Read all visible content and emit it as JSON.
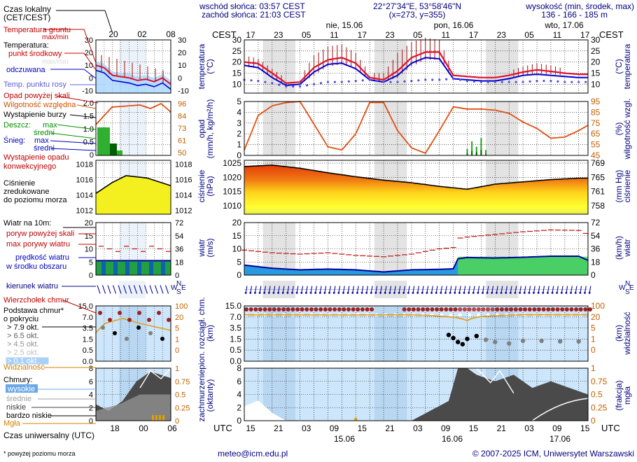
{
  "header": {
    "sunrise": "wschód słońca: 03:57 CEST",
    "sunset": "zachód słońca: 21:03 CEST",
    "coords": "22°27'34\"E, 53°58'46\"N",
    "grid": "(x=273,  y=355)",
    "elev_label": "wysokość (min, środek, max)",
    "elev_values": "136 - 166 - 185 m",
    "tz_label": "CEST",
    "utc_label": "UTC",
    "day_labels": [
      "nie, 15.06",
      "pon, 16.06",
      "wto, 17.06"
    ],
    "date_bottom": [
      "15.06",
      "16.06",
      "17.06"
    ]
  },
  "footer": {
    "email": "meteo@icm.edu.pl",
    "copyright": "© 2007-2025 ICM, Uniwersytet Warszawski",
    "note": "* powyżej poziomu morza",
    "left_axis_title": "Czas uniwersalny (UTC)"
  },
  "legend": {
    "local_time": [
      "Czas lokalny",
      "(CET/CEST)"
    ],
    "temp": {
      "ground": [
        "Temperatura gruntu",
        "max/min"
      ],
      "title": "Temperatura:",
      "mid": "punkt środkowy",
      "max_min": "max/min",
      "feel": "odczuwana",
      "dew": "Temp. punktu rosy"
    },
    "precip": {
      "above": "Opad powyżej skali",
      "humidity": "Wilgotność względna",
      "storm": "Wystąpienie burzy",
      "rain": "Deszcz:",
      "max": "max",
      "mean": "średni",
      "snow": "Śnieg:",
      "conv": [
        "Wystąpienie opadu",
        "konwekcyjnego"
      ]
    },
    "pressure": [
      "Ciśnienie",
      "zredukowane",
      "do poziomu morza"
    ],
    "wind": {
      "title": "Wiatr na 10m:",
      "above": "poryw powyżej skali",
      "gust": "max porywy wiatru",
      "speed": [
        "prędkość wiatru",
        "w środku obszaru"
      ]
    },
    "wdir": "kierunek wiatru",
    "cloud": {
      "top": "Wierzchołek chmur",
      "base": [
        "Podstawa chmur*",
        "o pokryciu"
      ],
      "okt": [
        "> 7.9 okt.",
        "> 6.5 okt.",
        "> 4.5 okt.",
        "> 2.5 okt.",
        "> 0.1 okt."
      ],
      "vis": "Widzialność"
    },
    "clouds": {
      "title": "Chmury:",
      "high": "wysokie",
      "mid": "średnie",
      "low": "niskie",
      "vlow": "bardzo niskie",
      "fog": "Mgła"
    },
    "compass": [
      "N",
      "W",
      "S",
      "E"
    ]
  },
  "axis_titles": {
    "temp_l": [
      "temperatura",
      "(°C)"
    ],
    "temp_r": [
      "(°C)",
      "temperatura"
    ],
    "precip_l": [
      "opad",
      "(mm/h, kg/m²/h)"
    ],
    "precip_r": [
      "(%)",
      "wilgotność wzgl."
    ],
    "press_l": [
      "ciśnienie",
      "(hPa)"
    ],
    "press_r": [
      "(mm Hg)",
      "ciśnienie"
    ],
    "wind_l": [
      "wiatr",
      "(m/s)"
    ],
    "wind_r": [
      "(km/h)",
      "wiatr"
    ],
    "cloud_l": [
      "pion. rozciągł. chm.",
      "(km)"
    ],
    "cloud_r": [
      "(km)",
      "widzialność"
    ],
    "cov_l": [
      "zachmurzenie",
      "(oktanty)"
    ],
    "cov_r": [
      "(frakcja)",
      "mgła"
    ]
  },
  "chart_data": {
    "type": "meteogram",
    "time_axis": {
      "start_utc": "2025-06-14 15:00",
      "step_hours": 1,
      "hours": 75,
      "cest_ticks": [
        "17",
        "23",
        "05",
        "11",
        "17",
        "23",
        "05",
        "11",
        "17",
        "23",
        "05",
        "11",
        "17"
      ],
      "utc_ticks": [
        "15",
        "21",
        "03",
        "09",
        "15",
        "21",
        "03",
        "09",
        "15",
        "21",
        "03",
        "09",
        "15"
      ],
      "night_bands_utc_hours": [
        [
          4,
          11
        ],
        [
          28,
          35
        ],
        [
          52,
          59
        ]
      ]
    },
    "temperature": {
      "ylim": [
        6,
        30
      ],
      "ticks": [
        10,
        15,
        20,
        25,
        30
      ],
      "key_hours": [
        0,
        3,
        6,
        9,
        12,
        15,
        18,
        21,
        24,
        27,
        30,
        33,
        36,
        39,
        42,
        45,
        48,
        51,
        54,
        57,
        60,
        63,
        66,
        69,
        72,
        74
      ],
      "mid": [
        20,
        19.3,
        15,
        10.5,
        11,
        17.5,
        21,
        22,
        19.5,
        13,
        12,
        16,
        22,
        24.5,
        24.5,
        14,
        13.5,
        13,
        13,
        14,
        15.5,
        16.5,
        15.8,
        15,
        14.5,
        14.5
      ],
      "feel": [
        18.5,
        17.5,
        13,
        9.5,
        10,
        15.5,
        19,
        19.5,
        17,
        12,
        11,
        14,
        19.5,
        22,
        21.5,
        12.5,
        12,
        11.5,
        11.5,
        12.5,
        14,
        14.5,
        14,
        13.5,
        13,
        13
      ],
      "dew": [
        12,
        11.5,
        10.5,
        9,
        9,
        10,
        11,
        11,
        11.5,
        12,
        11,
        11,
        11.5,
        12,
        12,
        12.5,
        11.5,
        11,
        11,
        11,
        11,
        11.5,
        11.5,
        11,
        11,
        11
      ],
      "max": [
        23,
        21.5,
        17,
        12.5,
        13,
        23,
        27,
        28,
        24,
        15,
        15,
        24,
        29,
        31,
        30,
        16,
        15,
        14.5,
        15,
        16,
        18,
        19.5,
        18.5,
        17,
        16,
        16
      ],
      "min": [
        18,
        17,
        13,
        9.5,
        10,
        14,
        18,
        19,
        17,
        12,
        11,
        13,
        18,
        21,
        21,
        13,
        12.5,
        12,
        12,
        13,
        14,
        15,
        14.5,
        14,
        13.5,
        13.5
      ]
    },
    "precipitation": {
      "precip_ylim": [
        0,
        5
      ],
      "precip_ticks": [
        0,
        1,
        2,
        3,
        4,
        5
      ],
      "rh_ticks": [
        45,
        55,
        65,
        75,
        85,
        95
      ],
      "rh_key_hours": [
        0,
        3,
        6,
        9,
        12,
        15,
        18,
        21,
        24,
        27,
        30,
        33,
        36,
        39,
        42,
        45,
        48,
        51,
        54,
        57,
        60,
        63,
        66,
        69,
        72,
        74
      ],
      "rh": [
        50,
        82,
        91,
        94,
        95,
        74,
        53,
        50,
        65,
        94,
        94,
        68,
        52,
        47,
        68,
        90,
        88,
        88,
        87,
        84,
        76,
        70,
        61,
        62,
        68,
        73
      ],
      "precip_events": [
        {
          "hour": 48,
          "max": 0.6,
          "mean": 0.2
        },
        {
          "hour": 49,
          "max": 1.3,
          "mean": 0.4
        },
        {
          "hour": 50,
          "max": 0.8,
          "mean": 0.3
        },
        {
          "hour": 51,
          "max": 1.6,
          "mean": 0.5
        },
        {
          "hour": 52,
          "max": 0.5,
          "mean": 0.1
        }
      ]
    },
    "pressure": {
      "ylim": [
        1007,
        1026
      ],
      "ticks": [
        1010,
        1015,
        1020,
        1025
      ],
      "mmhg_ticks": [
        758,
        761,
        765,
        769
      ],
      "key_hours": [
        0,
        6,
        12,
        18,
        24,
        30,
        36,
        42,
        48,
        54,
        60,
        66,
        72,
        74
      ],
      "values": [
        1023.8,
        1024.3,
        1023.2,
        1021.6,
        1020.2,
        1019.0,
        1018.1,
        1016.8,
        1015.8,
        1017.6,
        1018.4,
        1019.2,
        1019.7,
        1019.7
      ]
    },
    "wind": {
      "ylim": [
        0,
        20
      ],
      "ticks": [
        0,
        5,
        10,
        15,
        20
      ],
      "kmh_ticks": [
        0,
        18,
        36,
        54,
        72
      ],
      "key_hours": [
        0,
        6,
        12,
        18,
        24,
        30,
        36,
        42,
        45,
        46,
        48,
        54,
        60,
        66,
        72,
        74
      ],
      "speed": [
        3.8,
        2.6,
        2.0,
        2.3,
        2.0,
        1.2,
        2.0,
        2.2,
        2.4,
        6.2,
        6.7,
        6.5,
        6.8,
        7.2,
        7.2,
        5.6
      ],
      "gust": [
        9.5,
        8.5,
        8.0,
        8.5,
        7.5,
        7.0,
        8.0,
        10.0,
        10.5,
        14.0,
        14.5,
        15.5,
        16.5,
        17.2,
        17.0,
        15.5
      ],
      "direction_deg": 190
    },
    "clouds_vertical": {
      "ylim_km": [
        0,
        15
      ],
      "ticks_km": [
        0,
        0.5,
        1.5,
        3.5,
        7.0,
        15.0
      ],
      "vis_ticks_km": [
        0,
        1,
        5,
        20,
        100
      ],
      "top_row_km": 12.6,
      "visibility_key_hours": [
        0,
        12,
        24,
        36,
        45,
        48,
        51,
        60,
        74
      ],
      "visibility_km": [
        80,
        78,
        75,
        80,
        30,
        6,
        40,
        82,
        82
      ]
    },
    "cloud_cover": {
      "ylim_oktas": [
        0,
        8
      ],
      "ticks_oktas": [
        0,
        2,
        4,
        6,
        8
      ],
      "fog_ticks": [
        0,
        0.25,
        0.5,
        0.75,
        1
      ],
      "low_key_hours": [
        0,
        6,
        12,
        24,
        36,
        44,
        46,
        48,
        50,
        54,
        58,
        62,
        66,
        70,
        74
      ],
      "low_oktas": [
        0,
        0,
        0,
        0,
        0,
        3,
        8,
        8,
        7,
        6,
        7,
        5,
        6,
        5,
        4
      ]
    }
  }
}
